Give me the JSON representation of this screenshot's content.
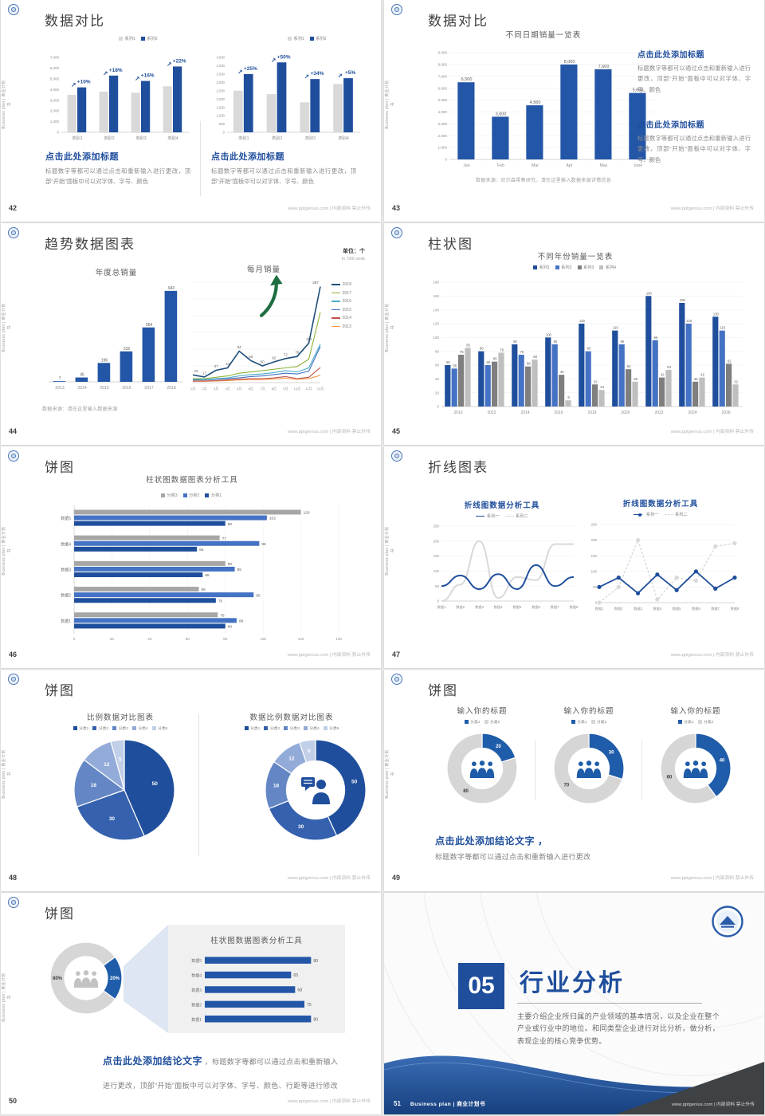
{
  "common": {
    "sidebar_text": "Business plan | 商业计划书",
    "footer_right": "www.pptgenius.com | 内部资料 禁止外传"
  },
  "slides": {
    "s42": {
      "page": "42",
      "title": "数据对比",
      "chart_left": {
        "type": "bar",
        "categories": [
          "类别1",
          "类别2",
          "类别3",
          "类别4"
        ],
        "ymax": 7000,
        "ystep": 1000,
        "legend": [
          {
            "label": "系列1",
            "color": "#D9D9D9"
          },
          {
            "label": "系列2",
            "color": "#1F4E9C"
          }
        ],
        "series": [
          {
            "name": "系列1",
            "color": "#D9D9D9",
            "values": [
              3500,
              3800,
              3700,
              4300
            ]
          },
          {
            "name": "系列2",
            "color": "#1F4E9C",
            "values": [
              4200,
              5300,
              4800,
              6150
            ]
          }
        ],
        "growth": {
          "series": 1,
          "labels": [
            "+10%",
            "+18%",
            "+16%",
            "+22%"
          ],
          "color": "#1F4E9C"
        }
      },
      "chart_right": {
        "type": "bar",
        "categories": [
          "类别1",
          "类别2",
          "类别3",
          "类别4"
        ],
        "ymax": 4500,
        "ystep": 500,
        "legend": [
          {
            "label": "系列1",
            "color": "#D9D9D9"
          },
          {
            "label": "系列2",
            "color": "#1F4E9C"
          }
        ],
        "series": [
          {
            "name": "系列1",
            "color": "#D9D9D9",
            "values": [
              2500,
              2300,
              1800,
              2900
            ]
          },
          {
            "name": "系列2",
            "color": "#1F4E9C",
            "values": [
              3500,
              4200,
              3200,
              3250
            ]
          }
        ],
        "growth": {
          "series": 1,
          "labels": [
            "+25%",
            "+50%",
            "+34%",
            "+5%"
          ],
          "color": "#1F4E9C"
        }
      },
      "blocks": [
        {
          "heading": "点击此处添加标题",
          "body": "标题数字等都可以通过点击和重新输入进行更改，顶部“开始”面板中可以对字体、字号、颜色"
        },
        {
          "heading": "点击此处添加标题",
          "body": "标题数字等都可以通过点击和重新输入进行更改，顶部“开始”面板中可以对字体、字号、颜色"
        }
      ]
    },
    "s43": {
      "page": "43",
      "title": "数据对比",
      "chart": {
        "type": "bar",
        "title": "不同日期销量一览表",
        "categories": [
          "Jan",
          "Feb",
          "Mar",
          "Apr",
          "May",
          "June"
        ],
        "ymax": 9000,
        "ystep": 1000,
        "series": [
          {
            "name": "销量",
            "color": "#2356A7",
            "values": [
              6500,
              3600,
              4560,
              8000,
              7600,
              5600
            ],
            "showValues": true
          }
        ]
      },
      "source": "数据来源：尼尔森零售研究，请在这里输入数据来源详情信息",
      "blocks": [
        {
          "heading": "点击此处添加标题",
          "body": "标题数字等都可以通过点击和重新输入进行更改，顶部“开始”面板中可以对字体、字号、颜色"
        },
        {
          "heading": "点击此处添加标题",
          "body": "标题数字等都可以通过点击和重新输入进行更改，顶部“开始”面板中可以对字体、字号、颜色"
        }
      ]
    },
    "s44": {
      "page": "44",
      "title": "趋势数据图表",
      "unit_label": "单位：个",
      "unit_sub": "in '000 units",
      "chart_left": {
        "type": "bar",
        "title": "年度总销量",
        "categories": [
          "2013",
          "2014",
          "2015",
          "2016",
          "2017",
          "2018"
        ],
        "ymax": 1000,
        "series": [
          {
            "name": "年度总销量",
            "color": "#2356A7",
            "values": [
              7,
              45,
              196,
              316,
              564,
              943
            ],
            "showValues": true
          }
        ]
      },
      "chart_right": {
        "type": "line",
        "title": "每月销量",
        "categories": [
          "1月",
          "2月",
          "3月",
          "4月",
          "5月",
          "6月",
          "7月",
          "8月",
          "9月",
          "10月",
          "11月",
          "12月"
        ],
        "ymax": 300,
        "ystep": 50,
        "legend": [
          {
            "label": "2018",
            "color": "#1F4E79",
            "type": "line"
          },
          {
            "label": "2017",
            "color": "#8DB33A",
            "type": "line"
          },
          {
            "label": "2016",
            "color": "#4BACC6",
            "type": "line"
          },
          {
            "label": "2015",
            "color": "#4472C4",
            "type": "line"
          },
          {
            "label": "2014",
            "color": "#C0504D",
            "type": "line"
          },
          {
            "label": "2013",
            "color": "#F79646",
            "type": "line"
          }
        ],
        "series": [
          {
            "name": "2013",
            "color": "#F79646",
            "values": [
              4,
              4,
              5,
              6,
              8,
              9,
              9,
              11,
              13,
              10,
              12,
              22
            ]
          },
          {
            "name": "2014",
            "color": "#C0504D",
            "values": [
              5,
              5,
              6,
              8,
              10,
              12,
              12,
              14,
              18,
              12,
              16,
              45
            ]
          },
          {
            "name": "2015",
            "color": "#4472C4",
            "values": [
              8,
              8,
              10,
              12,
              14,
              18,
              20,
              24,
              28,
              26,
              34,
              108
            ]
          },
          {
            "name": "2016",
            "color": "#4BACC6",
            "values": [
              10,
              9,
              12,
              14,
              20,
              24,
              26,
              30,
              36,
              32,
              44,
              115
            ]
          },
          {
            "name": "2017",
            "color": "#8DB33A",
            "values": [
              12,
              12,
              16,
              20,
              28,
              32,
              36,
              40,
              44,
              48,
              70,
              210
            ]
          },
          {
            "name": "2018",
            "color": "#1F4E79",
            "values": [
              23,
              17,
              37,
              44,
              94,
              66,
              50,
              62,
              72,
              78,
              118,
              287
            ],
            "showValues": true,
            "width": 1.6
          }
        ]
      },
      "source": "数据来源：请在这里输入数据来源"
    },
    "s45": {
      "page": "45",
      "title": "柱状图",
      "chart": {
        "type": "bar",
        "title": "不同年份销量一览表",
        "legend": [
          {
            "label": "系列1",
            "color": "#1F4E9C"
          },
          {
            "label": "系列2",
            "color": "#4472C4"
          },
          {
            "label": "系列3",
            "color": "#7F7F7F"
          },
          {
            "label": "系列4",
            "color": "#BFBFBF"
          }
        ],
        "categories": [
          "2010",
          "2012",
          "2014",
          "2016",
          "2018",
          "2020",
          "2022",
          "2024",
          "2026"
        ],
        "ymax": 180,
        "ystep": 20,
        "series": [
          {
            "name": "系列1",
            "color": "#1F4E9C",
            "values": [
              60,
              80,
              90,
              100,
              120,
              110,
              160,
              150,
              130
            ],
            "showValues": true
          },
          {
            "name": "系列2",
            "color": "#4472C4",
            "values": [
              55,
              60,
              75,
              90,
              80,
              90,
              96,
              120,
              110
            ],
            "showValues": true
          },
          {
            "name": "系列3",
            "color": "#7F7F7F",
            "values": [
              75,
              65,
              58,
              46,
              32,
              54,
              42,
              36,
              62
            ],
            "showValues": true
          },
          {
            "name": "系列4",
            "color": "#BFBFBF",
            "values": [
              85,
              78,
              68,
              9,
              24,
              36,
              53,
              42,
              32
            ],
            "showValues": true
          }
        ]
      }
    },
    "s46": {
      "page": "46",
      "title": "饼图",
      "chart": {
        "type": "hbar",
        "title": "柱状图数据图表分析工具",
        "legend": [
          {
            "label": "分类3",
            "color": "#A6A6A6"
          },
          {
            "label": "分类2",
            "color": "#4472C4"
          },
          {
            "label": "分类1",
            "color": "#1F4E9C"
          }
        ],
        "categories": [
          "数据5",
          "数据4",
          "数据3",
          "数据2",
          "数据1"
        ],
        "xmax": 140,
        "xstep": 20,
        "series": [
          {
            "name": "分类3",
            "color": "#A6A6A6",
            "values": [
              120,
              77,
              80,
              66,
              76
            ]
          },
          {
            "name": "分类2",
            "color": "#4472C4",
            "values": [
              102,
              98,
              85,
              95,
              86
            ]
          },
          {
            "name": "分类1",
            "color": "#1F4E9C",
            "values": [
              80,
              65,
              68,
              75,
              80
            ]
          }
        ]
      }
    },
    "s47": {
      "page": "47",
      "title": "折线图表",
      "charts": [
        {
          "title": "折线图数据分析工具",
          "legend": [
            {
              "label": "系列一",
              "color": "#1F4E9C",
              "type": "line"
            },
            {
              "label": "系列二",
              "color": "#D9D9D9",
              "type": "line"
            }
          ],
          "categories": [
            "数据1",
            "数据2",
            "数据3",
            "数据4",
            "数据5",
            "数据6",
            "数据7",
            "数据8"
          ],
          "ymax": 250,
          "ystep": 50,
          "series": [
            {
              "name": "系列二",
              "color": "#D9D9D9",
              "values": [
                0,
                55,
                200,
                10,
                80,
                70,
                190,
                190
              ],
              "smooth": true,
              "width": 2
            },
            {
              "name": "系列一",
              "color": "#1F4E9C",
              "values": [
                50,
                85,
                40,
                90,
                40,
                120,
                50,
                80
              ],
              "smooth": true,
              "width": 2
            }
          ]
        },
        {
          "title": "折线图数据分析工具",
          "legend": [
            {
              "label": "系列一",
              "color": "#1F4E9C",
              "type": "line-marker"
            },
            {
              "label": "系列二",
              "color": "#D9D9D9",
              "type": "line-dash"
            }
          ],
          "categories": [
            "数据1",
            "数据2",
            "数据3",
            "数据4",
            "数据5",
            "数据6",
            "数据7",
            "数据8"
          ],
          "ymax": 250,
          "ystep": 50,
          "series": [
            {
              "name": "系列二",
              "color": "#D9D9D9",
              "values": [
                0,
                50,
                200,
                10,
                80,
                70,
                180,
                190
              ],
              "dash": "3,2",
              "markers": true,
              "width": 1.4
            },
            {
              "name": "系列一",
              "color": "#1F4E9C",
              "values": [
                50,
                80,
                30,
                90,
                40,
                100,
                45,
                80
              ],
              "markers": true,
              "width": 1.8
            }
          ]
        }
      ]
    },
    "s48": {
      "page": "48",
      "title": "饼图",
      "charts": [
        {
          "type": "pie",
          "title": "比例数据对比图表",
          "legend": [
            {
              "label": "分类1",
              "color": "#1F4E9C"
            },
            {
              "label": "分类2",
              "color": "#3561AE"
            },
            {
              "label": "分类3",
              "color": "#6486C4"
            },
            {
              "label": "分类4",
              "color": "#93ABD8"
            },
            {
              "label": "分类5",
              "color": "#C2CFE8"
            }
          ],
          "values": [
            50,
            30,
            18,
            12,
            5
          ],
          "colors": [
            "#1F4E9C",
            "#3561AE",
            "#6486C4",
            "#93ABD8",
            "#C2CFE8"
          ]
        },
        {
          "type": "donut",
          "title": "数据比例数据对比图表",
          "legend": [
            {
              "label": "分类1",
              "color": "#1F4E9C"
            },
            {
              "label": "分类2",
              "color": "#3561AE"
            },
            {
              "label": "分类3",
              "color": "#6486C4"
            },
            {
              "label": "分类4",
              "color": "#93ABD8"
            },
            {
              "label": "分类5",
              "color": "#C2CFE8"
            }
          ],
          "values": [
            50,
            30,
            18,
            12,
            6
          ],
          "colors": [
            "#1F4E9C",
            "#3561AE",
            "#6486C4",
            "#93ABD8",
            "#C2CFE8"
          ]
        }
      ]
    },
    "s49": {
      "page": "49",
      "title": "饼图",
      "charts": [
        {
          "title": "输入你的标题",
          "legend": [
            {
              "label": "分类1",
              "color": "#1F5CA9"
            },
            {
              "label": "分类2",
              "color": "#D6D6D6"
            }
          ],
          "values": [
            20,
            80
          ],
          "colors": [
            "#1F5CA9",
            "#D6D6D6"
          ],
          "labelColors": [
            "#ffffff",
            "#404040"
          ]
        },
        {
          "title": "输入你的标题",
          "legend": [
            {
              "label": "分类1",
              "color": "#1F5CA9"
            },
            {
              "label": "分类2",
              "color": "#D6D6D6"
            }
          ],
          "values": [
            30,
            70
          ],
          "colors": [
            "#1F5CA9",
            "#D6D6D6"
          ],
          "labelColors": [
            "#ffffff",
            "#404040"
          ]
        },
        {
          "title": "输入你的标题",
          "legend": [
            {
              "label": "分类1",
              "color": "#1F5CA9"
            },
            {
              "label": "分类2",
              "color": "#D6D6D6"
            }
          ],
          "values": [
            40,
            60
          ],
          "colors": [
            "#1F5CA9",
            "#D6D6D6"
          ],
          "labelColors": [
            "#ffffff",
            "#404040"
          ]
        }
      ],
      "conclusion_heading": "点击此处添加结论文字 ，",
      "conclusion_body": "标题数字等都可以通过点击和重新输入进行更改"
    },
    "s50": {
      "page": "50",
      "title": "饼图",
      "donut": {
        "values": [
          20,
          80
        ],
        "labels": [
          "20%",
          "80%"
        ],
        "colors": [
          "#1F5CA9",
          "#D6D6D6"
        ],
        "labelColors": [
          "#ffffff",
          "#404040"
        ],
        "start": 54
      },
      "panel_title": "柱状图数据图表分析工具",
      "panel_chart": {
        "categories": [
          "数据5",
          "数据4",
          "数据3",
          "数据2",
          "数据1"
        ],
        "xmax": 90,
        "series": [
          {
            "name": "数据",
            "color": "#2356A7",
            "values": [
              80,
              65,
              68,
              75,
              80
            ]
          }
        ]
      },
      "conclusion_heading": "点击此处添加结论文字",
      "conclusion_body": " ，标题数字等都可以通过点击和重新输入进行更改，顶部“开始”面板中可以对字体、字号、颜色、行距等进行修改"
    },
    "s51": {
      "page": "51",
      "number": "05",
      "title": "行业分析",
      "body": "主要介绍企业所归属的产业领域的基本情况，以及企业在整个产业或行业中的地位。和同类型企业进行对比分析，做分析，表现企业的核心竞争优势。",
      "footer_brand": "Business plan | 商业计划书"
    }
  }
}
